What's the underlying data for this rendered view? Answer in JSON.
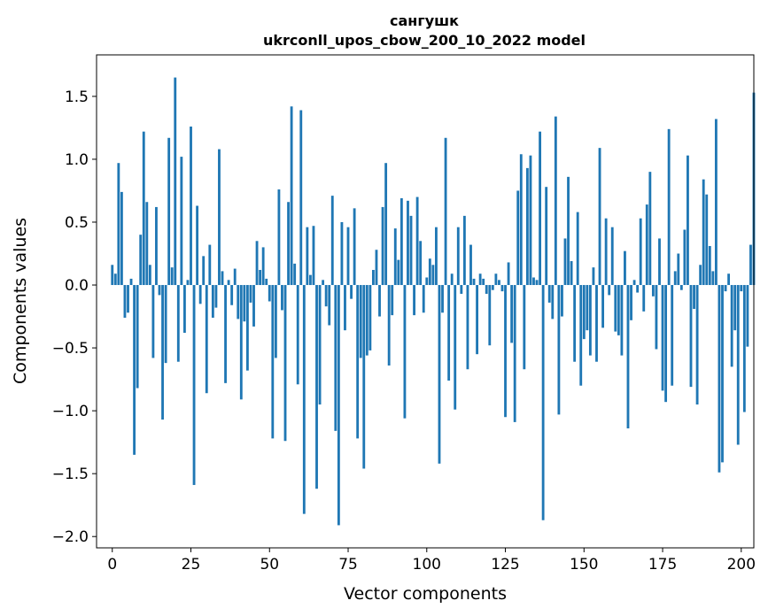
{
  "chart_data": {
    "type": "bar",
    "title": "сангушк",
    "subtitle": "ukrconll_upos_cbow_200_10_2022 model",
    "xlabel": "Vector components",
    "ylabel": "Components values",
    "xlim": [
      -5,
      204
    ],
    "ylim": [
      -2.09,
      1.83
    ],
    "xticks": [
      0,
      25,
      50,
      75,
      100,
      125,
      150,
      175,
      200
    ],
    "xtick_labels": [
      "0",
      "25",
      "50",
      "75",
      "100",
      "125",
      "150",
      "175",
      "200"
    ],
    "yticks": [
      -2.0,
      -1.5,
      -1.0,
      -0.5,
      0.0,
      0.5,
      1.0,
      1.5
    ],
    "ytick_labels": [
      "−2.0",
      "−1.5",
      "−1.0",
      "−0.5",
      "0.0",
      "0.5",
      "1.0",
      "1.5"
    ],
    "bar_color": "#1f77b4",
    "series": [
      {
        "name": "components",
        "values": [
          0.16,
          0.09,
          0.97,
          0.74,
          -0.26,
          -0.22,
          0.05,
          -1.35,
          -0.82,
          0.4,
          1.22,
          0.66,
          0.16,
          -0.58,
          0.62,
          -0.08,
          -1.07,
          -0.62,
          1.17,
          0.14,
          1.65,
          -0.61,
          1.02,
          -0.38,
          0.04,
          1.26,
          -1.59,
          0.63,
          -0.15,
          0.23,
          -0.86,
          0.32,
          -0.26,
          -0.18,
          1.08,
          0.11,
          -0.78,
          0.04,
          -0.16,
          0.13,
          -0.27,
          -0.91,
          -0.29,
          -0.68,
          -0.14,
          -0.33,
          0.35,
          0.12,
          0.3,
          0.05,
          -0.13,
          -1.22,
          -0.58,
          0.76,
          -0.2,
          -1.24,
          0.66,
          1.42,
          0.17,
          -0.79,
          1.39,
          -1.82,
          0.46,
          0.08,
          0.47,
          -1.62,
          -0.95,
          0.04,
          -0.17,
          -0.32,
          0.71,
          -1.16,
          -1.91,
          0.5,
          -0.36,
          0.46,
          -0.11,
          0.61,
          -1.22,
          -0.58,
          -1.46,
          -0.56,
          -0.52,
          0.12,
          0.28,
          -0.25,
          0.62,
          0.97,
          -0.64,
          -0.24,
          0.45,
          0.2,
          0.69,
          -1.06,
          0.67,
          0.55,
          -0.24,
          0.7,
          0.35,
          -0.22,
          0.06,
          0.21,
          0.16,
          0.46,
          -1.42,
          -0.22,
          1.17,
          -0.76,
          0.09,
          -0.99,
          0.46,
          -0.07,
          0.55,
          -0.67,
          0.32,
          0.05,
          -0.55,
          0.09,
          0.05,
          -0.07,
          -0.48,
          -0.04,
          0.09,
          0.04,
          -0.05,
          -1.05,
          0.18,
          -0.46,
          -1.09,
          0.75,
          1.04,
          -0.67,
          0.93,
          1.03,
          0.06,
          0.04,
          1.22,
          -1.87,
          0.78,
          -0.14,
          -0.27,
          1.34,
          -1.03,
          -0.25,
          0.37,
          0.86,
          0.19,
          -0.61,
          0.58,
          -0.8,
          -0.43,
          -0.36,
          -0.56,
          0.14,
          -0.61,
          1.09,
          -0.34,
          0.53,
          -0.08,
          0.46,
          -0.37,
          -0.4,
          -0.56,
          0.27,
          -1.14,
          -0.28,
          0.04,
          -0.06,
          0.53,
          -0.21,
          0.64,
          0.9,
          -0.09,
          -0.51,
          0.37,
          -0.84,
          -0.93,
          1.24,
          -0.8,
          0.11,
          0.25,
          -0.04,
          0.44,
          1.03,
          -0.81,
          -0.19,
          -0.95,
          0.16,
          0.84,
          0.72,
          0.31,
          0.11,
          1.32,
          -1.49,
          -1.41,
          -0.05,
          0.09,
          -0.65,
          -0.36,
          -1.27,
          -0.05,
          -1.01,
          -0.49,
          0.32,
          1.53
        ]
      }
    ]
  }
}
